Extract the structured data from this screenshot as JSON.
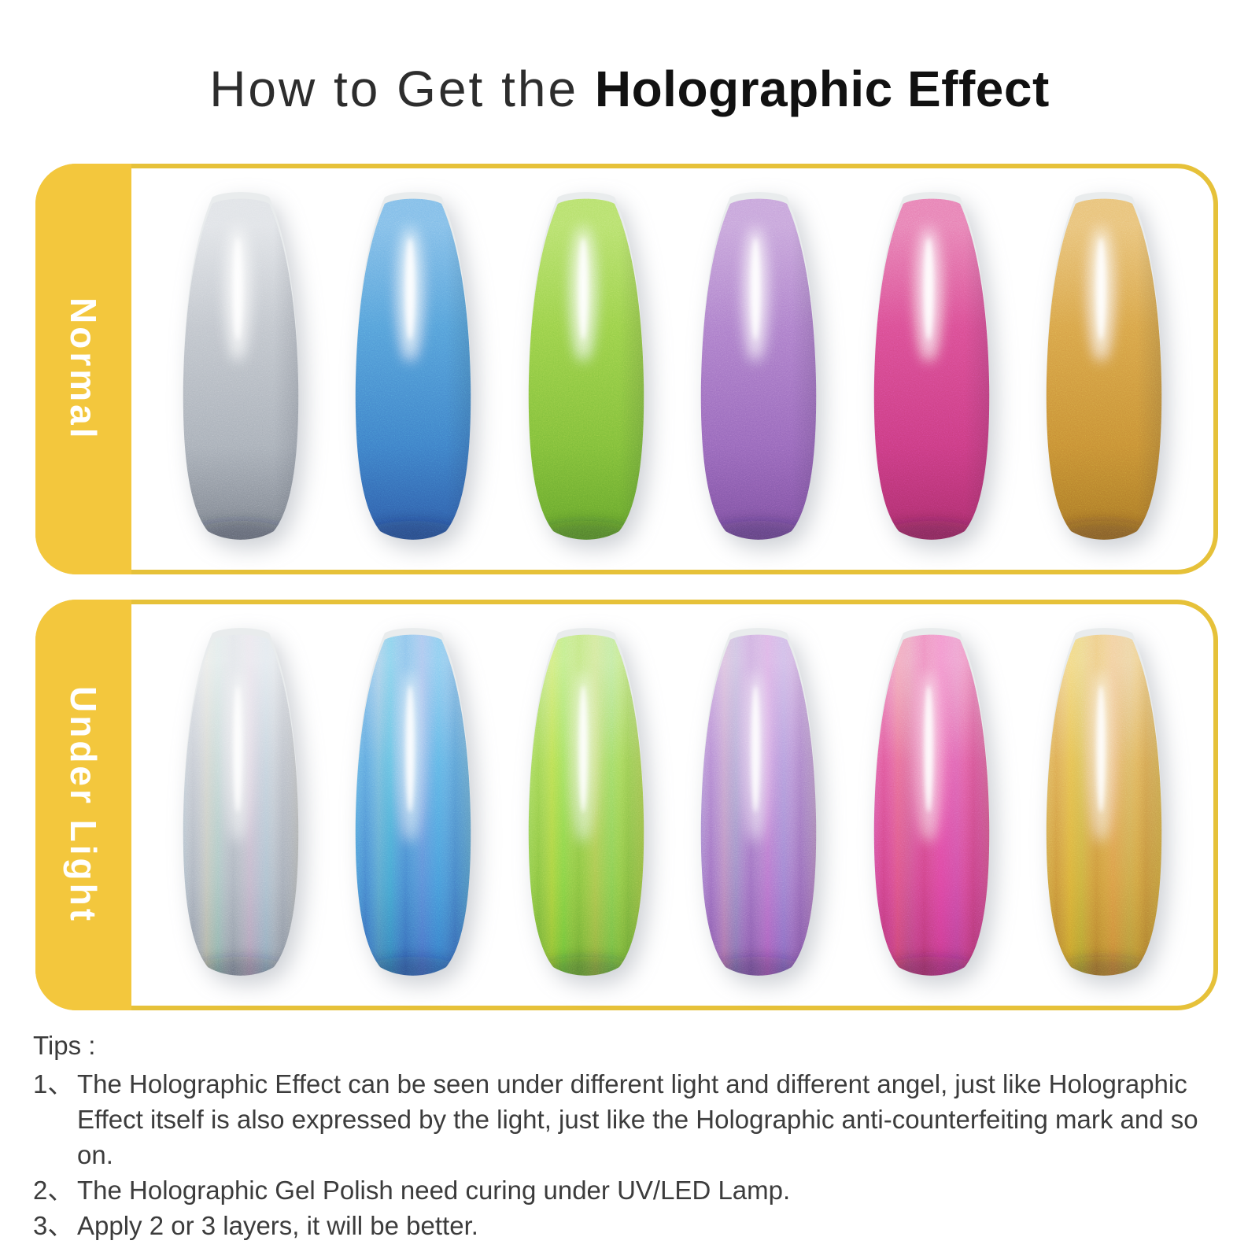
{
  "title": {
    "light": "How to Get the ",
    "bold": "Holographic Effect"
  },
  "theme": {
    "yellow_strip": "#f3c73d",
    "yellow_border": "#e6c139",
    "label_text": "#ffffff",
    "title_text": "#1f1f1f",
    "tips_text": "#3c3c3c"
  },
  "panels": [
    {
      "label": "Normal",
      "mode": "normal",
      "nails": [
        {
          "name": "silver",
          "top": "#e0e3e7",
          "mid": "#bfc4cb",
          "low": "#a6adb6",
          "deep": "#7d848f"
        },
        {
          "name": "blue",
          "top": "#7fbce8",
          "mid": "#539dd8",
          "low": "#3c7cc6",
          "deep": "#2e5da8"
        },
        {
          "name": "green",
          "top": "#b5e06b",
          "mid": "#97cf48",
          "low": "#7cbc38",
          "deep": "#66a52c"
        },
        {
          "name": "purple",
          "top": "#c6a3da",
          "mid": "#ab7cc9",
          "low": "#9465b8",
          "deep": "#7b50a0"
        },
        {
          "name": "pink",
          "top": "#e77fb3",
          "mid": "#d94c90",
          "low": "#c93a7f",
          "deep": "#ad2e6c"
        },
        {
          "name": "gold",
          "top": "#e8c177",
          "mid": "#d7a147",
          "low": "#c68c33",
          "deep": "#aa7626"
        }
      ]
    },
    {
      "label": "Under Light",
      "mode": "under-light",
      "nails": [
        {
          "name": "silver",
          "top": "#e4e7eb",
          "mid": "#c6cbd3",
          "low": "#aab2bd",
          "deep": "#8e97a4"
        },
        {
          "name": "blue",
          "top": "#8cc4ec",
          "mid": "#5ea6de",
          "low": "#4584cd",
          "deep": "#3568b6"
        },
        {
          "name": "green",
          "top": "#c3e884",
          "mid": "#a0d553",
          "low": "#85c23f",
          "deep": "#6fab33"
        },
        {
          "name": "purple",
          "top": "#d0b0e1",
          "mid": "#b389d1",
          "low": "#9b6dbf",
          "deep": "#8458a9"
        },
        {
          "name": "pink",
          "top": "#ee8fc0",
          "mid": "#df5798",
          "low": "#cf4186",
          "deep": "#b63575"
        },
        {
          "name": "gold",
          "top": "#eecd86",
          "mid": "#ddaa52",
          "low": "#cb9439",
          "deep": "#b3802c"
        }
      ]
    }
  ],
  "tips": {
    "title": "Tips :",
    "items": [
      {
        "num": "1、",
        "text": "The Holographic Effect can be seen under different light and different angel, just like Holographic Effect itself is also expressed by the light, just like the Holographic anti-counterfeiting mark and so on."
      },
      {
        "num": "2、",
        "text": "The Holographic Gel Polish need curing under UV/LED Lamp."
      },
      {
        "num": "3、",
        "text": "Apply 2 or 3 layers, it will be better."
      }
    ]
  }
}
